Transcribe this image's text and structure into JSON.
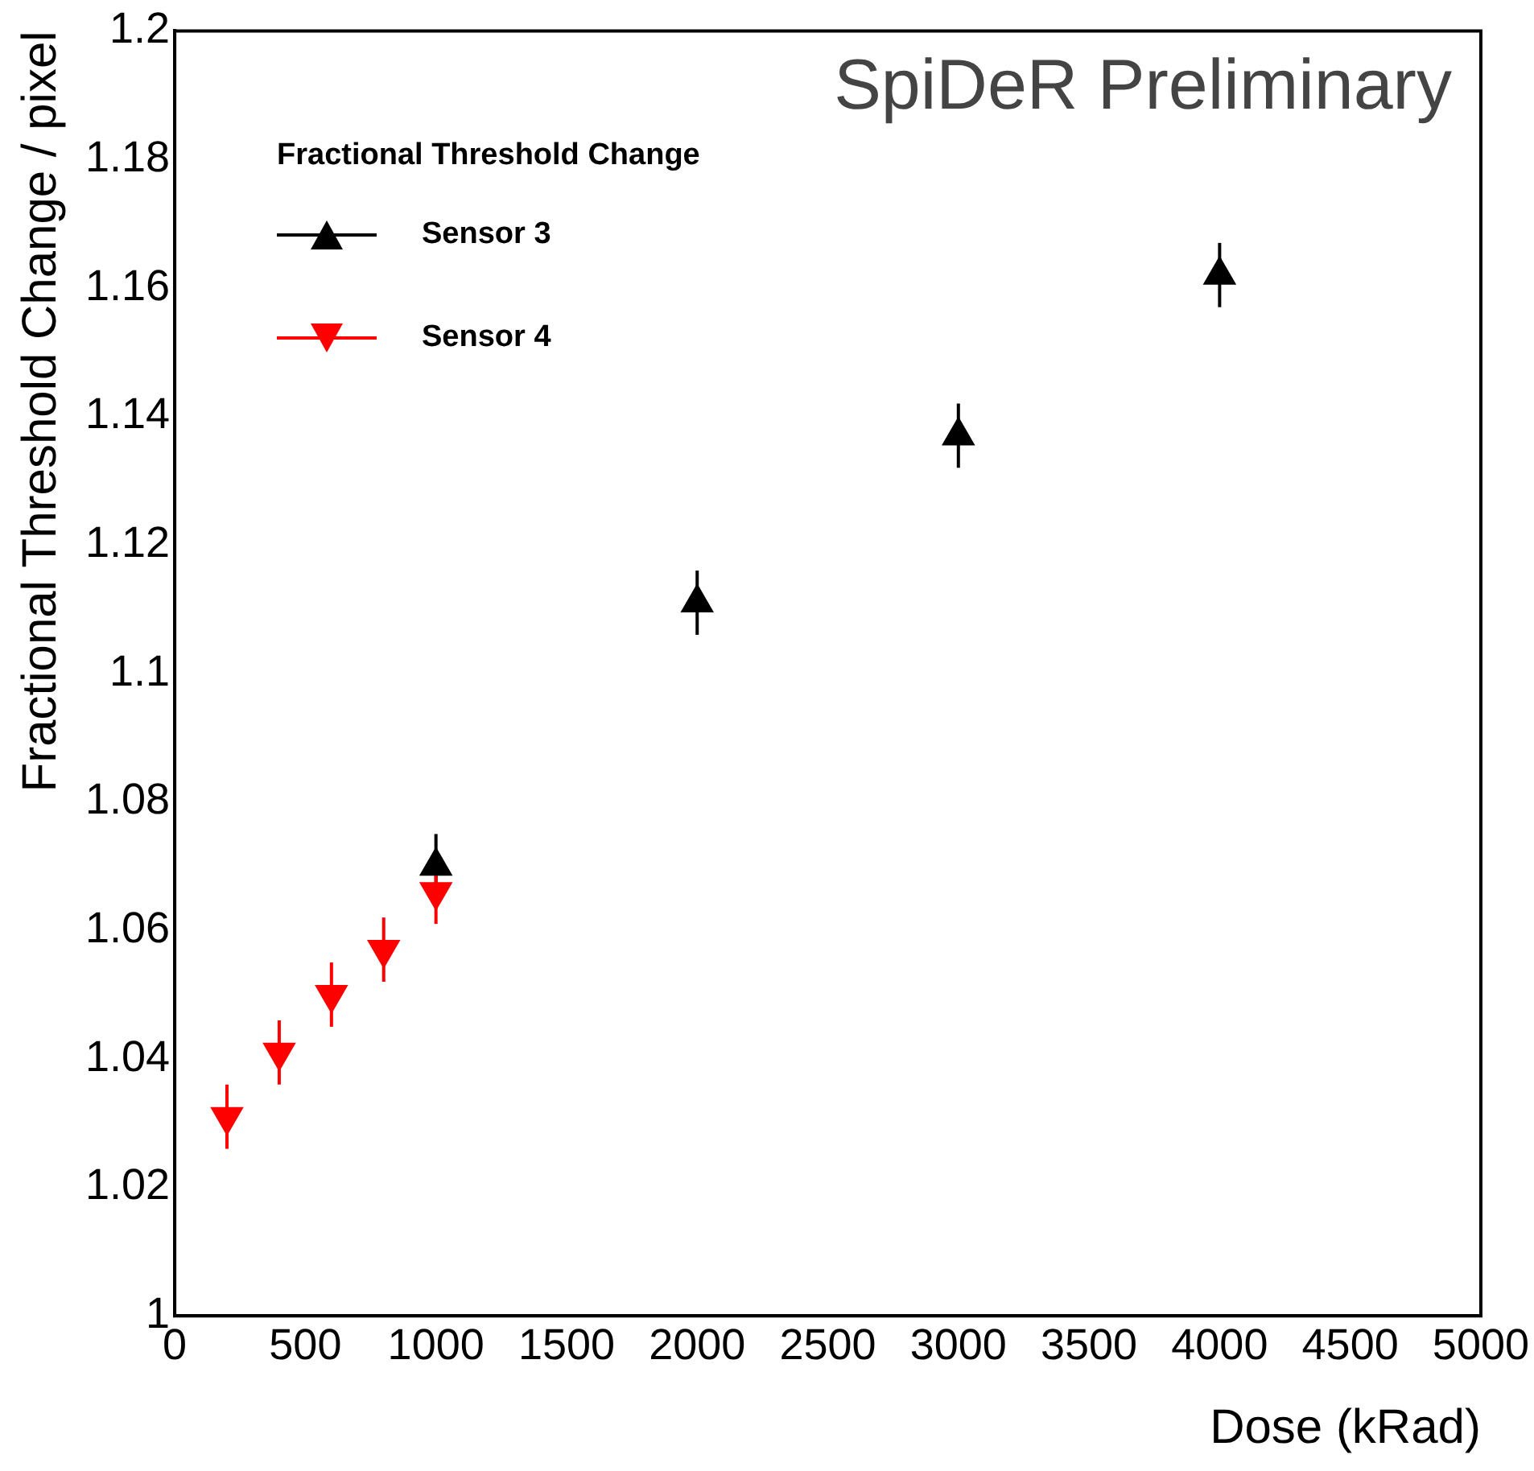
{
  "chart_data": {
    "type": "scatter",
    "xlabel": "Dose (kRad)",
    "ylabel": "Fractional Threshold Change / pixel",
    "legend_title": "Fractional Threshold Change",
    "legend": "top left",
    "annotations": [
      "SpiDeR Preliminary"
    ],
    "xlim": [
      0,
      5000
    ],
    "xticks": [
      0,
      500,
      1000,
      1500,
      2000,
      2500,
      3000,
      3500,
      4000,
      4500,
      5000
    ],
    "ylim": [
      1,
      1.2
    ],
    "yticks": [
      1,
      1.02,
      1.04,
      1.06,
      1.08,
      1.1,
      1.12,
      1.14,
      1.16,
      1.18,
      1.2
    ],
    "grid": false,
    "series": [
      {
        "name": "Sensor 3",
        "color": "#000000",
        "marker": "triangle",
        "x": [
          1000,
          2000,
          3000,
          4000
        ],
        "values": [
          1.07,
          1.111,
          1.137,
          1.162
        ],
        "errors": [
          0.005,
          0.005,
          0.005,
          0.005
        ]
      },
      {
        "name": "Sensor 4",
        "color": "#ff0000",
        "marker": "triangle-down",
        "x": [
          200,
          400,
          600,
          800,
          1000
        ],
        "values": [
          1.031,
          1.041,
          1.05,
          1.057,
          1.066
        ],
        "errors": [
          0.005,
          0.005,
          0.005,
          0.005,
          0.005
        ]
      }
    ]
  }
}
